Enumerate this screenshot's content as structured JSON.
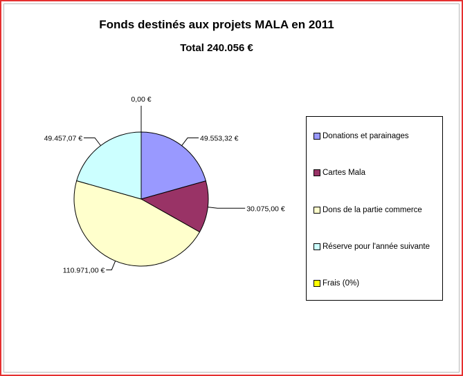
{
  "chart_data": {
    "type": "pie",
    "title": "Fonds destinés aux projets MALA en 2011",
    "subtitle": "Total 240.056 €",
    "categories": [
      "Donations et parainages",
      "Cartes Mala",
      "Dons de la partie commerce",
      "Réserve pour l'année suivante",
      "Frais (0%)"
    ],
    "values": [
      49553.32,
      30075.0,
      110971.0,
      49457.07,
      0.0
    ],
    "data_labels": [
      "49.553,32 €",
      "30.075,00 €",
      "110.971,00 €",
      "49.457,07 €",
      "0,00 €"
    ],
    "colors": [
      "#9999ff",
      "#993366",
      "#ffffcc",
      "#ccffff",
      "#ffff00"
    ],
    "legend_position": "right",
    "start": "top, clockwise"
  }
}
